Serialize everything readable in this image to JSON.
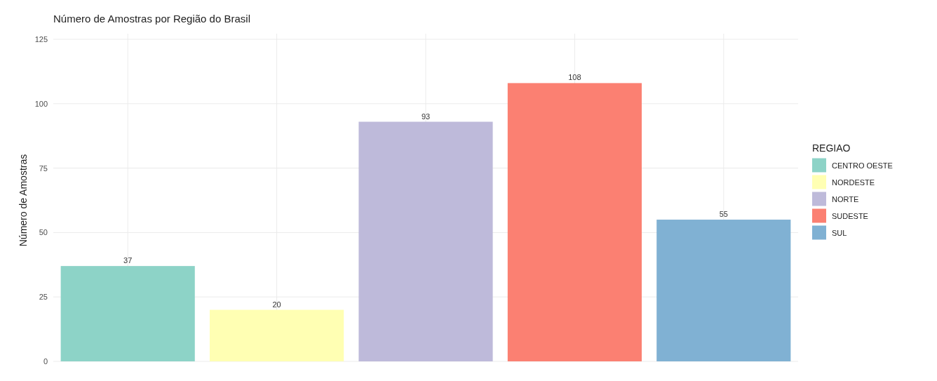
{
  "chart_data": {
    "type": "bar",
    "title": "Número de Amostras por Região do Brasil",
    "ylabel": "Número de Amostras",
    "legend_title": "REGIAO",
    "categories": [
      null,
      null,
      null,
      null,
      null
    ],
    "series": [
      {
        "name": "CENTRO OESTE",
        "color": "#8dd3c7",
        "values": [
          37,
          null,
          null,
          null,
          null
        ]
      },
      {
        "name": "NORDESTE",
        "color": "#ffffb3",
        "values": [
          null,
          20,
          null,
          null,
          null
        ]
      },
      {
        "name": "NORTE",
        "color": "#bebada",
        "values": [
          null,
          null,
          93,
          null,
          null
        ]
      },
      {
        "name": "SUDESTE",
        "color": "#fb8072",
        "values": [
          null,
          null,
          null,
          108,
          null
        ]
      },
      {
        "name": "SUL",
        "color": "#80b1d3",
        "values": [
          null,
          null,
          null,
          null,
          55
        ]
      }
    ],
    "ylim": [
      0,
      125
    ],
    "yticks": [
      0,
      25,
      50,
      75,
      100,
      125
    ],
    "grid": true,
    "legend": "right",
    "data_labels": true
  }
}
